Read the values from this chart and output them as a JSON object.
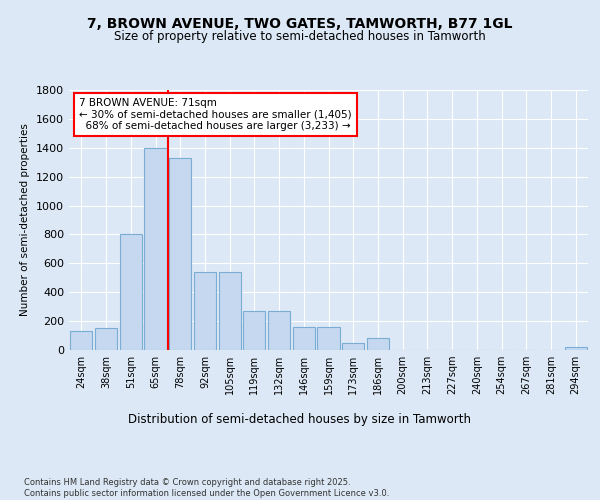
{
  "title1": "7, BROWN AVENUE, TWO GATES, TAMWORTH, B77 1GL",
  "title2": "Size of property relative to semi-detached houses in Tamworth",
  "xlabel": "Distribution of semi-detached houses by size in Tamworth",
  "ylabel": "Number of semi-detached properties",
  "categories": [
    "24sqm",
    "38sqm",
    "51sqm",
    "65sqm",
    "78sqm",
    "92sqm",
    "105sqm",
    "119sqm",
    "132sqm",
    "146sqm",
    "159sqm",
    "173sqm",
    "186sqm",
    "200sqm",
    "213sqm",
    "227sqm",
    "240sqm",
    "254sqm",
    "267sqm",
    "281sqm",
    "294sqm"
  ],
  "values": [
    130,
    150,
    800,
    1400,
    1330,
    540,
    540,
    270,
    270,
    160,
    160,
    50,
    80,
    0,
    0,
    0,
    0,
    0,
    0,
    0,
    20
  ],
  "bar_color": "#c5d8f0",
  "bar_edge_color": "#7aadd4",
  "vline_x": 3.5,
  "vline_color": "red",
  "annotation_text": "7 BROWN AVENUE: 71sqm\n← 30% of semi-detached houses are smaller (1,405)\n  68% of semi-detached houses are larger (3,233) →",
  "annotation_box_color": "white",
  "annotation_box_edge": "red",
  "ylim": [
    0,
    1800
  ],
  "yticks": [
    0,
    200,
    400,
    600,
    800,
    1000,
    1200,
    1400,
    1600,
    1800
  ],
  "footer": "Contains HM Land Registry data © Crown copyright and database right 2025.\nContains public sector information licensed under the Open Government Licence v3.0.",
  "bg_color": "#dce8f5",
  "plot_bg_color": "#dce8f5"
}
